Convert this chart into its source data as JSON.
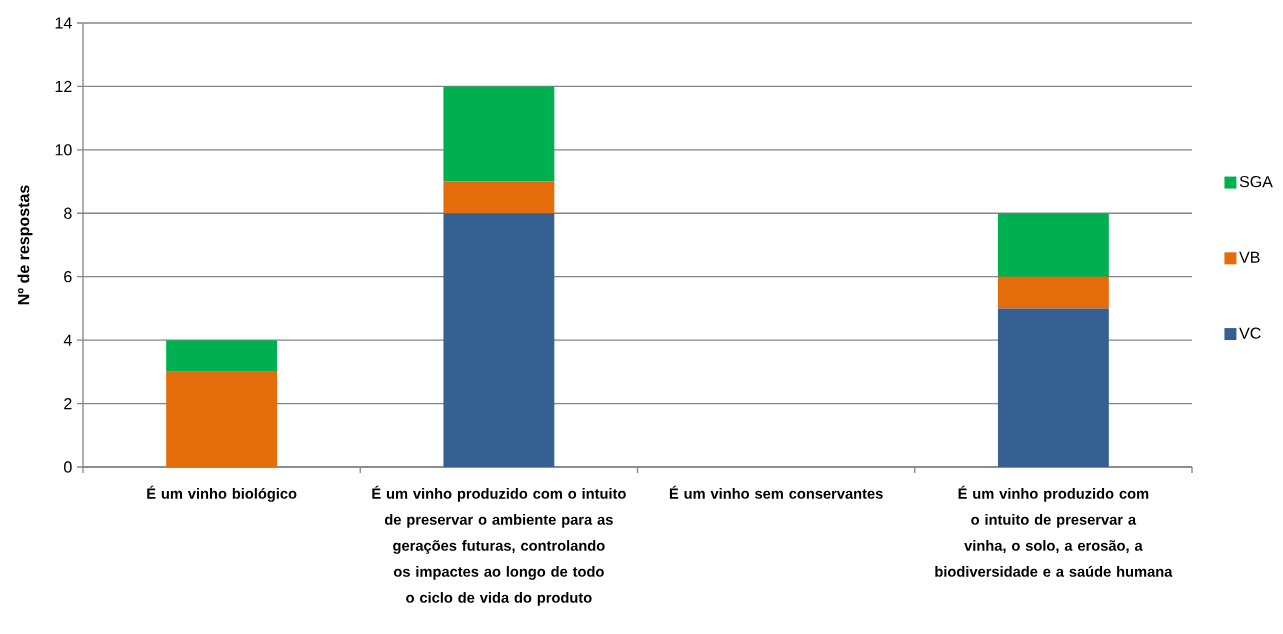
{
  "chart_data": {
    "type": "bar",
    "stacked": true,
    "ylabel": "Nº de respostas",
    "categories": [
      "É um vinho biológico",
      "É um vinho produzido com o intuito de preservar o ambiente para as gerações futuras, controlando os impactes ao longo de todo o ciclo de vida do produto",
      "É um vinho sem conservantes",
      "É um vinho produzido com o intuito de preservar a vinha, o solo, a erosão, a biodiversidade e a saúde humana"
    ],
    "series": [
      {
        "name": "VC",
        "color": "#376092",
        "values": [
          0,
          8,
          0,
          5
        ]
      },
      {
        "name": "VB",
        "color": "#e46c0a",
        "values": [
          3,
          1,
          0,
          1
        ]
      },
      {
        "name": "SGA",
        "color": "#00b050",
        "values": [
          1,
          3,
          0,
          2
        ]
      }
    ],
    "ylim": [
      0,
      14
    ],
    "yticks": [
      0,
      2,
      4,
      6,
      8,
      10,
      12,
      14
    ],
    "grid": "y",
    "legend": "right"
  }
}
